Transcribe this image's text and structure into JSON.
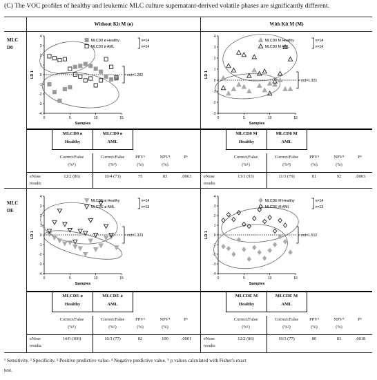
{
  "title": "(C) The VOC profiles of healthy and leukemic MLC culture supernatant-derived volatile phases are significantly different.",
  "columns": {
    "left": "Without Kit M (ø)",
    "right": "With Kit M (M)"
  },
  "rows": [
    {
      "line1": "MLC",
      "line2": "D0"
    },
    {
      "line1": "MLC",
      "line2": "DE"
    }
  ],
  "chart_data": [
    {
      "type": "scatter",
      "panel": "MLCD0 ø",
      "xlabel": "Samples",
      "ylabel": "LD 1",
      "xlim": [
        0,
        15
      ],
      "ylim": [
        -4,
        4
      ],
      "xticks": [
        0,
        5,
        10,
        15
      ],
      "yticks": [
        -4,
        -3,
        -2,
        -1,
        0,
        1,
        2,
        3,
        4
      ],
      "md_label": "md=1.282",
      "md_y": 0,
      "series": [
        {
          "name": "MLCD0 ø Healthy",
          "n": "n=14",
          "marker": "square-filled",
          "color": "#999999",
          "x": [
            1,
            2,
            3,
            4,
            5,
            6,
            7,
            8,
            9,
            10,
            11,
            12,
            13,
            14
          ],
          "y": [
            -1.0,
            -1.8,
            -2.7,
            -1.5,
            -1.3,
            0.8,
            0.9,
            1.1,
            0.9,
            0.6,
            0.3,
            -0.2,
            -0.5,
            -0.4
          ]
        },
        {
          "name": "MLCD0 ø AML",
          "n": "n=14",
          "marker": "square-open",
          "color": "#222222",
          "x": [
            1,
            2,
            3,
            4,
            5,
            6,
            7,
            8,
            9,
            10,
            11,
            12,
            13,
            14
          ],
          "y": [
            1.9,
            1.7,
            1.5,
            1.6,
            0.6,
            0.0,
            -0.2,
            -0.6,
            -0.4,
            -1.1,
            -0.6,
            1.6,
            0.8,
            -0.3
          ]
        }
      ]
    },
    {
      "type": "scatter",
      "panel": "MLCD0 M",
      "xlabel": "Samples",
      "ylabel": "LD 1",
      "xlim": [
        0,
        15
      ],
      "ylim": [
        -3,
        4
      ],
      "xticks": [
        0,
        5,
        10,
        15
      ],
      "yticks": [
        -3,
        -2,
        -1,
        0,
        1,
        2,
        3,
        4
      ],
      "md_label": "md=1.321",
      "md_y": 0,
      "series": [
        {
          "name": "MLCD0 M Healthy",
          "n": "n=14",
          "marker": "triangle-filled",
          "color": "#aaaaaa",
          "x": [
            1,
            2,
            3,
            4,
            5,
            6,
            7,
            8,
            9,
            10,
            11,
            12,
            13,
            14
          ],
          "y": [
            0.2,
            -1.2,
            -0.8,
            -0.4,
            -0.6,
            -1.0,
            0.9,
            -0.5,
            -0.9,
            -0.3,
            -0.4,
            0.0,
            -0.8,
            -0.8
          ]
        },
        {
          "name": "MLCD0 M AML",
          "n": "n=14",
          "marker": "triangle-open",
          "color": "#222222",
          "x": [
            1,
            2,
            3,
            4,
            5,
            6,
            7,
            8,
            9,
            10,
            11,
            12,
            13,
            14
          ],
          "y": [
            -0.7,
            1.3,
            0.9,
            2.5,
            2.3,
            0.4,
            2.1,
            0.6,
            0.8,
            -1.2,
            -0.1,
            0.6,
            3.0,
            1.9
          ]
        }
      ]
    },
    {
      "type": "scatter",
      "panel": "MLCDE ø",
      "xlabel": "Samples",
      "ylabel": "LD 1",
      "xlim": [
        0,
        15
      ],
      "ylim": [
        -4,
        4
      ],
      "xticks": [
        0,
        5,
        10,
        15
      ],
      "yticks": [
        -4,
        -3,
        -2,
        -1,
        0,
        1,
        2,
        3,
        4
      ],
      "md_label": "md=1.323",
      "md_y": 0,
      "series": [
        {
          "name": "MLCDE ø Healthy",
          "n": "n=14",
          "marker": "triangle-down-filled",
          "color": "#aaaaaa",
          "x": [
            1,
            2,
            3,
            4,
            5,
            6,
            7,
            8,
            9,
            10,
            11,
            12,
            13,
            14
          ],
          "y": [
            0.1,
            -0.3,
            -0.6,
            -0.9,
            -0.8,
            -1.2,
            -1.4,
            -2.0,
            -0.6,
            -1.5,
            -1.1,
            -0.3,
            -0.2,
            -1.3
          ]
        },
        {
          "name": "MLCDE ø AML",
          "n": "n=13",
          "marker": "triangle-down-open",
          "color": "#222222",
          "x": [
            1,
            2,
            3,
            4,
            5,
            6,
            7,
            8,
            9,
            10,
            11,
            12,
            13
          ],
          "y": [
            0.4,
            1.3,
            2.5,
            1.1,
            0.5,
            -0.7,
            0.4,
            0.2,
            1.5,
            0.0,
            3.3,
            0.9,
            0.0
          ]
        }
      ]
    },
    {
      "type": "scatter",
      "panel": "MLCDE M",
      "xlabel": "Samples",
      "ylabel": "LD 1",
      "xlim": [
        0,
        15
      ],
      "ylim": [
        -4,
        4
      ],
      "xticks": [
        0,
        5,
        10,
        15
      ],
      "yticks": [
        -4,
        -3,
        -2,
        -1,
        0,
        1,
        2,
        3,
        4
      ],
      "md_label": "md=1.512",
      "md_y": 0,
      "series": [
        {
          "name": "MLCDE M Healthy",
          "n": "n=14",
          "marker": "diamond-filled",
          "color": "#aaaaaa",
          "x": [
            1,
            2,
            3,
            4,
            5,
            6,
            7,
            8,
            9,
            10,
            11,
            12,
            13,
            14
          ],
          "y": [
            -1.2,
            -1.4,
            -2.0,
            -0.5,
            -1.5,
            -2.5,
            -1.3,
            -1.8,
            -2.4,
            -1.6,
            -1.0,
            -0.2,
            -0.7,
            -1.8
          ]
        },
        {
          "name": "MLCDE M AML",
          "n": "n=13",
          "marker": "diamond-open",
          "color": "#222222",
          "x": [
            1,
            2,
            3,
            4,
            5,
            6,
            7,
            8,
            9,
            10,
            11,
            12,
            13
          ],
          "y": [
            1.5,
            2.1,
            1.6,
            2.3,
            1.1,
            0.9,
            1.7,
            2.6,
            1.4,
            1.8,
            0.4,
            1.5,
            1.0
          ]
        }
      ]
    }
  ],
  "tables": [
    {
      "box_left": "MLCD0 ø",
      "box_left2": "Healthy",
      "box_right": "MLCD0 ø",
      "box_right2": "AML",
      "h_cf1": "Correct/False",
      "h_cf1b": "(%¹)",
      "h_cf2": "Correct/False",
      "h_cf2b": "(%²)",
      "h_ppv": "PPV³",
      "h_ppvb": "(%)",
      "h_npv": "NPV⁴",
      "h_npvb": "(%)",
      "h_p": "P⁵",
      "row_label": "eNose",
      "row_label2": "results",
      "v_cf1": "12/2 (86)",
      "v_cf2": "10/4 (71)",
      "v_ppv": "75",
      "v_npv": "83",
      "v_p": ".0063"
    },
    {
      "box_left": "MLCD0 M",
      "box_left2": "Healthy",
      "box_right": "MLCD0 M",
      "box_right2": "AML",
      "h_cf1": "Correct/False",
      "h_cf1b": "(%¹)",
      "h_cf2": "Correct/False",
      "h_cf2b": "(%²)",
      "h_ppv": "PPV³",
      "h_ppvb": "(%)",
      "h_npv": "NPV⁴",
      "h_npvb": "(%)",
      "h_p": "P⁵",
      "row_label": "eNose",
      "row_label2": "results",
      "v_cf1": "13/1 (93)",
      "v_cf2": "11/3 (79)",
      "v_ppv": "81",
      "v_npv": "92",
      "v_p": ".0003"
    },
    {
      "box_left": "MLCDE ø",
      "box_left2": "Healthy",
      "box_right": "MLCDE ø",
      "box_right2": "AML",
      "h_cf1": "Correct/False",
      "h_cf1b": "(%¹)",
      "h_cf2": "Correct/False",
      "h_cf2b": "(%²)",
      "h_ppv": "PPV³",
      "h_ppvb": "(%)",
      "h_npv": "NPV⁴",
      "h_npvb": "(%)",
      "h_p": "P⁵",
      "row_label": "eNose",
      "row_label2": "results",
      "v_cf1": "14/0 (100)",
      "v_cf2": "10/3 (77)",
      "v_ppv": "82",
      "v_npv": "100",
      "v_p": ".0001"
    },
    {
      "box_left": "MLCDE M",
      "box_left2": "Healthy",
      "box_right": "MLCDE M",
      "box_right2": "AML",
      "h_cf1": "Correct/False",
      "h_cf1b": "(%¹)",
      "h_cf2": "Correct/False",
      "h_cf2b": "(%²)",
      "h_ppv": "PPV³",
      "h_ppvb": "(%)",
      "h_npv": "NPV⁴",
      "h_npvb": "(%)",
      "h_p": "P⁵",
      "row_label": "eNose",
      "row_label2": "results",
      "v_cf1": "12/2 (86)",
      "v_cf2": "10/3 (77)",
      "v_ppv": "80",
      "v_npv": "83",
      "v_p": ".0018"
    }
  ],
  "footnote1": "¹ Sensitivity. ² Specificity. ³ Positive predictive value. ⁴ Negative predictive value. ⁵ p values calculated with Fisher's exact",
  "footnote2": "test."
}
